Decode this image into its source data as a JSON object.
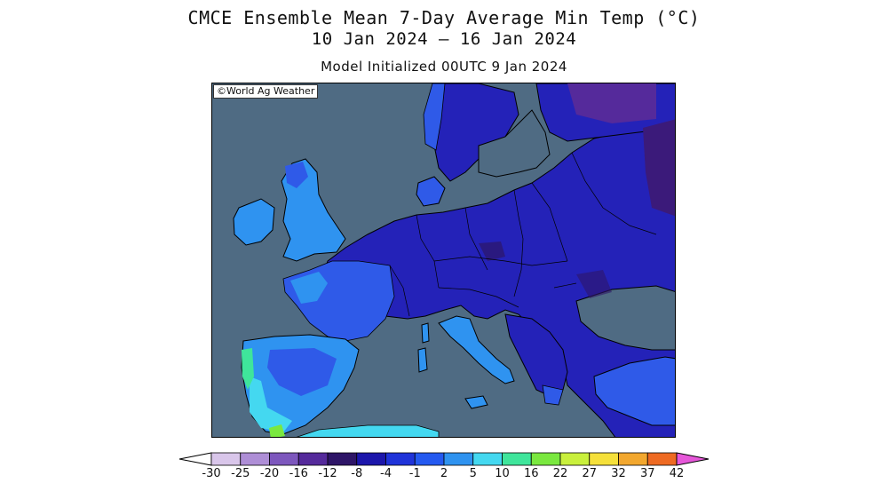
{
  "header": {
    "title": "CMCE Ensemble Mean 7-Day Average Min Temp (°C)",
    "date_range": "10 Jan 2024 — 16 Jan 2024",
    "initialized": "Model Initialized 00UTC 9 Jan 2024"
  },
  "map": {
    "copyright": "©World Ag Weather",
    "colors": {
      "sea": "#4f6b83",
      "coast": "#000000"
    }
  },
  "legend": {
    "ticks": [
      "-30",
      "-25",
      "-20",
      "-16",
      "-12",
      "-8",
      "-4",
      "-1",
      "2",
      "5",
      "10",
      "16",
      "22",
      "27",
      "32",
      "37",
      "42"
    ],
    "colors": [
      "#ffffff",
      "#d9c6ea",
      "#ae8ed6",
      "#7d57bd",
      "#552a9b",
      "#2e1567",
      "#1c16ab",
      "#1f33d9",
      "#2459f0",
      "#2f93f0",
      "#44d8f0",
      "#3fe59b",
      "#7ae83f",
      "#c9f03c",
      "#f5e03a",
      "#f2a72e",
      "#ee6a22",
      "#e8282a",
      "#e41d82",
      "#e657d9"
    ]
  }
}
